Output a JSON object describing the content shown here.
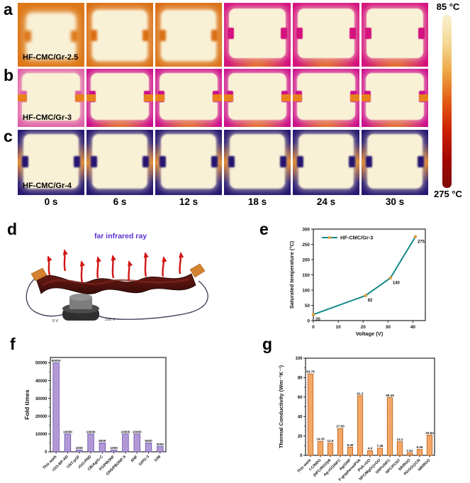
{
  "letters": {
    "d": "d",
    "e": "e",
    "f": "f",
    "g": "g"
  },
  "colorbar": {
    "top_label": "85 °C",
    "bottom_label": "275 °C",
    "stops": [
      "#f8f0d0",
      "#f4d894",
      "#eda443",
      "#e25a12",
      "#cc2004",
      "#a30804",
      "#7c0d08"
    ]
  },
  "thermal": {
    "time_labels": [
      "0 s",
      "6 s",
      "12 s",
      "18 s",
      "24 s",
      "30 s"
    ],
    "rows": [
      {
        "letter": "a",
        "sample": "HF-CMC/Gr-2.5",
        "cells": [
          "orangeSoft",
          "orange",
          "orange",
          "magentaA",
          "magentaA",
          "magentaA"
        ]
      },
      {
        "letter": "b",
        "sample": "HF-CMC/Gr-3",
        "cells": [
          "pink",
          "magentaB",
          "magentaB",
          "magentaB",
          "magentaB",
          "magentaB"
        ]
      },
      {
        "letter": "c",
        "sample": "HF-CMC/Gr-4",
        "cells": [
          "dark",
          "dark",
          "dark",
          "dark",
          "dark",
          "dark"
        ]
      }
    ],
    "schemes": {
      "orangeSoft": {
        "bg": "#dd7718",
        "blob": "#f9f1d6",
        "edge": "#f3a93c",
        "inset": [
          16,
          13,
          12,
          13
        ],
        "blur": 2.5
      },
      "orange": {
        "bg": "#db6f14",
        "blob": "#f9f1d6",
        "edge": "#f3a93c",
        "inset": [
          11,
          9,
          9,
          9
        ],
        "blur": 1.5
      },
      "magentaA": {
        "bg": "#d4117e",
        "blob": "#f9f1d6",
        "edge": "#e8831c",
        "inset": [
          9,
          7,
          13,
          7
        ],
        "blur": 0.5,
        "glow": "bottom"
      },
      "pink": {
        "bg": "#de5da6",
        "blob": "#f9f1d6",
        "edge": "#e8831c",
        "inset": [
          7,
          6,
          11,
          6
        ],
        "blur": 0.5,
        "clip": true
      },
      "magentaB": {
        "bg": "#cc0d8c",
        "blob": "#f9f1d6",
        "edge": "#e8831c",
        "inset": [
          7,
          6,
          12,
          6
        ],
        "blur": 0.5,
        "glow": "bottom",
        "clip": true
      },
      "dark": {
        "bg": "#251570",
        "blob": "#f9f1d6",
        "edge": "#e8831c",
        "inset": [
          7,
          8,
          10,
          8
        ],
        "blur": 1,
        "glow": "sides"
      }
    }
  },
  "schematic": {
    "title": "far infrared ray",
    "title_color": "#5b2fd0",
    "left_label": "0 V",
    "right_label": "220 V",
    "film_color_dark": "#380c08",
    "film_color_light": "#6b1a14",
    "arrow_color": "#d21414",
    "electrode_color": "#d4822f"
  },
  "chart_data": [
    {
      "id": "e",
      "type": "line",
      "series": [
        {
          "name": "HF-CMC/Gr-3",
          "x": [
            0,
            21,
            31,
            41
          ],
          "y": [
            20,
            82,
            140,
            275
          ],
          "point_labels": [
            "20",
            "82",
            "140",
            "275"
          ]
        }
      ],
      "xlabel": "Voltage (V)",
      "ylabel": "Saturated temperature (°C)",
      "xlim": [
        0,
        45
      ],
      "ylim": [
        0,
        300
      ],
      "xticks": [
        0,
        10,
        20,
        30,
        40
      ],
      "yticks": [
        0,
        50,
        100,
        150,
        200,
        250,
        300
      ],
      "line_color": "#15898c",
      "marker_color": "#e8a23c",
      "legend_position": "top-left"
    },
    {
      "id": "f",
      "type": "bar",
      "categories": [
        "This work",
        "rGO-BP-AD",
        "CNT-pGF",
        "rGO-PND",
        "CB/Ag/G-C",
        "FG/PBONF",
        "GNS/PBONF-X",
        "ANF",
        "G/PG-3",
        "G/M"
      ],
      "values": [
        50000,
        10000,
        1000,
        10000,
        5000,
        1000,
        10000,
        10000,
        5000,
        3000
      ],
      "value_labels": [
        "50000",
        "10000",
        "1000",
        "10000",
        "5000",
        "1000",
        "10000",
        "10000",
        "5000",
        "3000"
      ],
      "ylabel": "Fold times",
      "ylim": [
        0,
        53000
      ],
      "yticks": [
        0,
        10000,
        20000,
        30000,
        40000,
        50000
      ],
      "bar_fill": "#b49bd8",
      "bar_stroke": "#6b51a8"
    },
    {
      "id": "g",
      "type": "bar",
      "categories": [
        "This work",
        "f-C/NDG",
        "(NFC/RGO)/6",
        "Ag-rGO/NFC",
        "Ag/GNP",
        "F-graphene/PVA",
        "PVA-rGO",
        "NFC/MgO@rGO",
        "GNPs/NFC",
        "NFC/FCNT",
        "SR/RGO",
        "PI/rGO@CN",
        "NR/RGO"
      ],
      "values": [
        83.76,
        14.35,
        12.6,
        27.55,
        8.45,
        61.3,
        4.9,
        7.45,
        59.46,
        14.1,
        2.61,
        6.06,
        20.84
      ],
      "value_labels": [
        "83.76",
        "14.35",
        "12.6",
        "27.55",
        "8.45",
        "61.3",
        "4.9",
        "7.45",
        "59.46",
        "14.1",
        "2.61",
        "6.06",
        "20.84"
      ],
      "ylabel": "Thermal Conductivity (Wm⁻¹K⁻¹)",
      "ylim": [
        0,
        100
      ],
      "yticks": [
        0,
        20,
        40,
        60,
        80,
        100
      ],
      "bar_fill": "#f4aa6a",
      "bar_stroke": "#bf5f16"
    }
  ]
}
